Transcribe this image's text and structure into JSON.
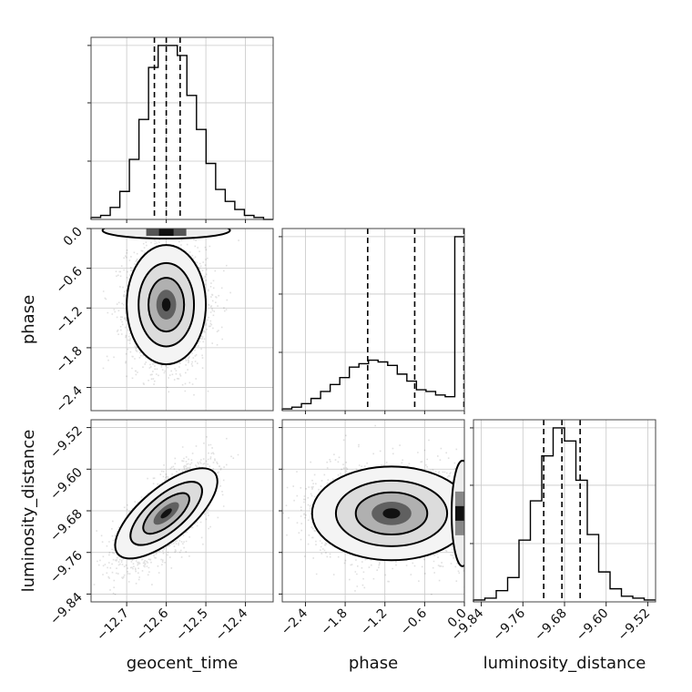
{
  "chart_data": {
    "type": "corner",
    "parameters": [
      {
        "name": "geocent_time",
        "label": "geocent_time",
        "range": [
          -12.79,
          -12.33
        ],
        "ticks": [
          -12.7,
          -12.6,
          -12.5,
          -12.4
        ],
        "tick_labels": [
          "−12.7",
          "−12.6",
          "−12.5",
          "−12.4"
        ],
        "quantiles": [
          -12.63,
          -12.6,
          -12.565
        ],
        "histogram": [
          1,
          2,
          6,
          14,
          30,
          50,
          76,
          87,
          87,
          82,
          62,
          45,
          28,
          15,
          9,
          5,
          2,
          1,
          0
        ]
      },
      {
        "name": "phase",
        "label": "phase",
        "range": [
          -2.75,
          0.0
        ],
        "ticks": [
          -2.4,
          -1.8,
          -1.2,
          -0.6,
          0.0
        ],
        "tick_labels": [
          "−2.4",
          "−1.8",
          "−1.2",
          "−0.6",
          "0.0"
        ],
        "quantiles": [
          -1.46,
          -0.75,
          0.0
        ],
        "histogram": [
          1,
          2,
          4,
          7,
          11,
          15,
          19,
          25,
          27,
          29,
          28,
          26,
          21,
          17,
          12,
          11,
          9,
          8,
          100
        ]
      },
      {
        "name": "luminosity_distance",
        "label": "luminosity_distance",
        "range": [
          -9.855,
          -9.505
        ],
        "ticks": [
          -9.84,
          -9.76,
          -9.68,
          -9.6,
          -9.52
        ],
        "tick_labels": [
          "−9.84",
          "−9.76",
          "−9.68",
          "−9.60",
          "−9.52"
        ],
        "quantiles": [
          -9.72,
          -9.685,
          -9.65
        ],
        "histogram": [
          1,
          2,
          6,
          13,
          33,
          54,
          78,
          93,
          86,
          65,
          36,
          16,
          7,
          3,
          2,
          1
        ]
      }
    ],
    "pairs": [
      {
        "x": "geocent_time",
        "y": "phase",
        "center": [
          -12.6,
          -1.15
        ],
        "spread": [
          0.05,
          0.45
        ],
        "correlation": 0.0,
        "note_bound": "phase upper edge 0.0"
      },
      {
        "x": "geocent_time",
        "y": "luminosity_distance",
        "center": [
          -12.6,
          -9.685
        ],
        "spread": [
          0.055,
          0.045
        ],
        "correlation": 0.7
      },
      {
        "x": "phase",
        "y": "luminosity_distance",
        "center": [
          -1.1,
          -9.685
        ],
        "spread": [
          0.6,
          0.045
        ],
        "correlation": 0.0
      }
    ]
  }
}
